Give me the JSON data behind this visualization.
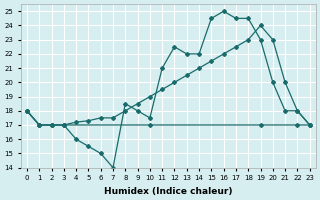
{
  "xlabel": "Humidex (Indice chaleur)",
  "bg_color": "#d6eef0",
  "grid_color": "#ffffff",
  "line_color": "#1a6b6b",
  "xlim": [
    -0.5,
    23.5
  ],
  "ylim": [
    14,
    25.5
  ],
  "xticks": [
    0,
    1,
    2,
    3,
    4,
    5,
    6,
    7,
    8,
    9,
    10,
    11,
    12,
    13,
    14,
    15,
    16,
    17,
    18,
    19,
    20,
    21,
    22,
    23
  ],
  "yticks": [
    14,
    15,
    16,
    17,
    18,
    19,
    20,
    21,
    22,
    23,
    24,
    25
  ],
  "line1_x": [
    0,
    1,
    2,
    3,
    4,
    5,
    6,
    7,
    8,
    9,
    10,
    11,
    12,
    13,
    14,
    15,
    16,
    17,
    18,
    19,
    20,
    21,
    22,
    23
  ],
  "line1_y": [
    18,
    17,
    17,
    17,
    16,
    15.5,
    15,
    14,
    18.5,
    18,
    17.5,
    21,
    22.5,
    22,
    22,
    24.5,
    25,
    24.5,
    24.5,
    23,
    20,
    18,
    18,
    17
  ],
  "line2_x": [
    0,
    1,
    2,
    3,
    4,
    5,
    6,
    7,
    8,
    9,
    10,
    11,
    12,
    13,
    14,
    15,
    16,
    17,
    18,
    19,
    20,
    21,
    22,
    23
  ],
  "line2_y": [
    18,
    17,
    17,
    17,
    17.2,
    17.3,
    17.5,
    17.5,
    18,
    18.5,
    19,
    19.5,
    20,
    20.5,
    21,
    21.5,
    22,
    22.5,
    23,
    24,
    23,
    20,
    18,
    17
  ],
  "line3_x": [
    0,
    1,
    2,
    3,
    10,
    19,
    22,
    23
  ],
  "line3_y": [
    18,
    17,
    17,
    17,
    17,
    17,
    17,
    17
  ]
}
